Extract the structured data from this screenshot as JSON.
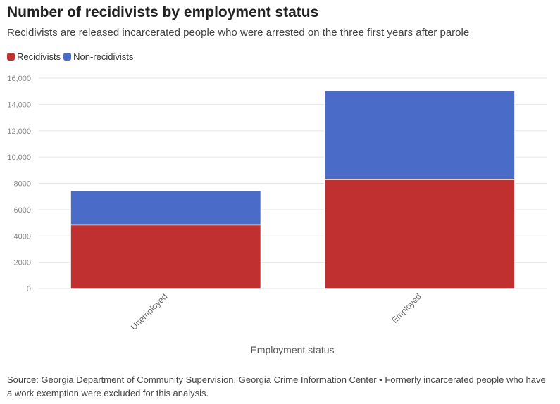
{
  "chart_data": {
    "type": "bar",
    "stacked": true,
    "title": "Number of recidivists by employment status",
    "subtitle": "Recidivists are released incarcerated people who were arrested on the three first years after parole",
    "xlabel": "Employment status",
    "ylabel": "",
    "categories": [
      "Unemployed",
      "Employed"
    ],
    "series": [
      {
        "name": "Recidivists",
        "color": "#c03030",
        "values": [
          4850,
          8300
        ]
      },
      {
        "name": "Non-recidivists",
        "color": "#4a6cc8",
        "values": [
          2600,
          6750
        ]
      }
    ],
    "ylim": [
      0,
      16000
    ],
    "yticks": [
      0,
      2000,
      4000,
      6000,
      8000,
      10000,
      12000,
      14000,
      16000
    ],
    "ytick_labels": [
      "0",
      "2000",
      "4000",
      "6000",
      "8000",
      "10,000",
      "12,000",
      "14,000",
      "16,000"
    ],
    "grid": true,
    "legend_position": "top-left",
    "source": "Source: Georgia Department of Community Supervision, Georgia Crime Information Center • Formerly incarcerated people who have a work exemption were excluded for this analysis."
  }
}
